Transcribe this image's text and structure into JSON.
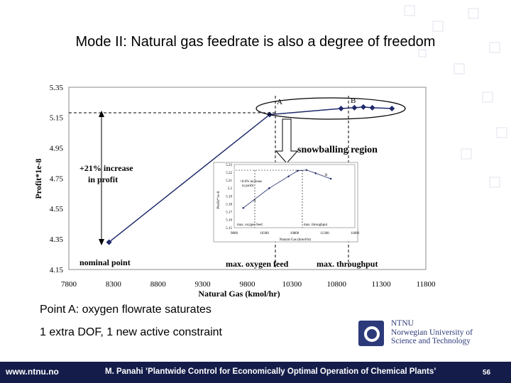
{
  "slide": {
    "title": "Mode II: Natural gas feedrate is also a degree of freedom",
    "bullets": [
      "Point A: oxygen flowrate saturates",
      "1 extra DOF, 1 new active constraint"
    ],
    "logo_text": "NTNU\nNorwegian University of\nScience and Technology",
    "footer": {
      "url": "www.ntnu.no",
      "credit": "M. Panahi ’Plantwide Control for Economically Optimal Operation of Chemical Plants’",
      "page": "56"
    },
    "colors": {
      "footer_bg": "#141d4a",
      "series": "#1f2a6b",
      "logo": "#2d3a7a"
    }
  },
  "chart_data": [
    {
      "type": "line",
      "xlabel": "Natural Gas (kmol/hr)",
      "ylabel": "Profit*1e-8",
      "xlim": [
        7800,
        11800
      ],
      "ylim": [
        4.15,
        5.35
      ],
      "x_ticks": [
        7800,
        8300,
        8800,
        9300,
        9800,
        10300,
        10800,
        11300,
        11800
      ],
      "y_ticks": [
        4.15,
        4.35,
        4.55,
        4.75,
        4.95,
        5.15,
        5.35
      ],
      "series": [
        {
          "x": [
            8250,
            10050,
            10850,
            11000,
            11100,
            11200,
            11420
          ],
          "y": [
            4.33,
            5.17,
            5.21,
            5.215,
            5.22,
            5.215,
            5.21
          ]
        }
      ],
      "annotations": {
        "point_a": "A",
        "point_b": "B",
        "increase": "+21% increase\nin profit",
        "nominal": "nominal point",
        "max_oxygen": "max. oxygen feed",
        "max_throughput": "max. throughput",
        "region": "snowballing region"
      }
    },
    {
      "type": "line",
      "xlabel": "Natural Gas (kmol/hr)",
      "ylabel": "Profit*1e-8",
      "xlim": [
        9800,
        11800
      ],
      "ylim": [
        5.15,
        5.23
      ],
      "x_ticks": [
        9800,
        10300,
        10800,
        11300,
        11800
      ],
      "y_ticks": [
        5.15,
        5.16,
        5.17,
        5.18,
        5.19,
        5.2,
        5.21,
        5.22,
        5.23
      ],
      "series": [
        {
          "x": [
            9950,
            10380,
            10700,
            10850,
            11000,
            11150,
            11400
          ],
          "y": [
            5.175,
            5.2,
            5.215,
            5.222,
            5.223,
            5.219,
            5.212
          ]
        }
      ],
      "annotations": {
        "point_a": "A",
        "point_b": "B",
        "increase": "+0.6% increase\nin profit",
        "max_oxygen": "max. oxygen feed",
        "max_throughput": "max. throughput"
      }
    }
  ]
}
